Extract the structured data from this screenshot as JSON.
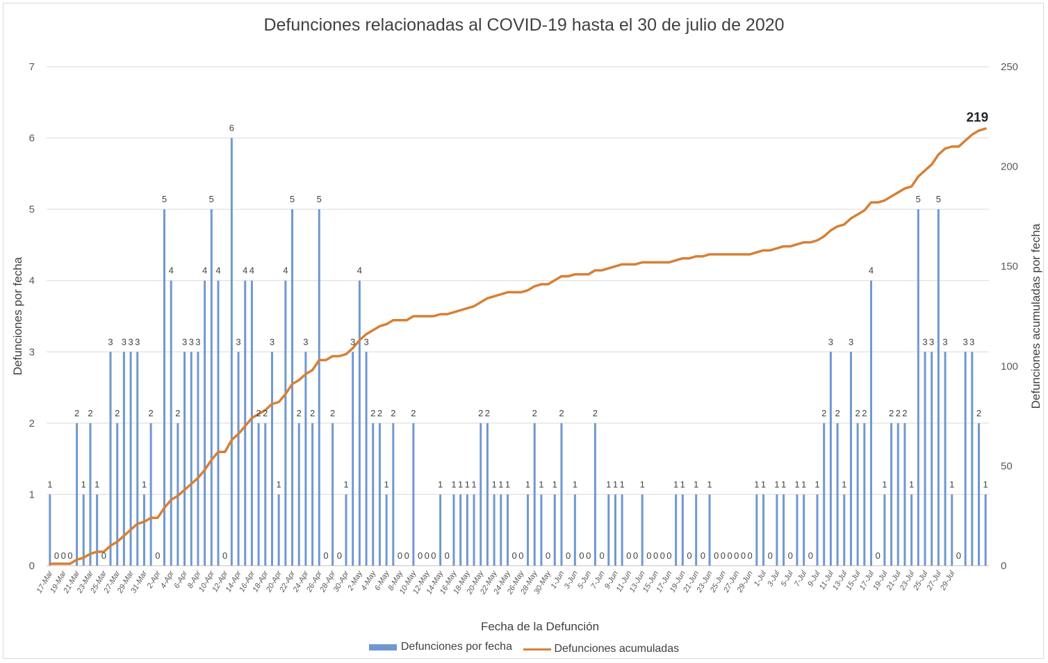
{
  "chart_data": {
    "type": "bar",
    "title": "Defunciones relacionadas al COVID-19 hasta el 30 de julio de 2020",
    "xlabel": "Fecha de la Defunción",
    "ylabel": "Defunciones por fecha",
    "y2label": "Defunciones acumuladas por fecha",
    "ylim": [
      0,
      7
    ],
    "y2lim": [
      0,
      250
    ],
    "yticks": [
      "0",
      "1",
      "2",
      "3",
      "4",
      "5",
      "6",
      "7"
    ],
    "y2ticks": [
      "0",
      "50",
      "100",
      "150",
      "200",
      "250"
    ],
    "grid": true,
    "legend_position": "bottom",
    "colors": {
      "bars": "#6f98d2",
      "line": "#d87f33",
      "grid": "#d9d9d9"
    },
    "tick_labels": [
      "17-Mar",
      "19-Mar",
      "21-Mar",
      "23-Mar",
      "25-Mar",
      "27-Mar",
      "29-Mar",
      "31-Mar",
      "2-Apr",
      "4-Apr",
      "6-Apr",
      "8-Apr",
      "10-Apr",
      "12-Apr",
      "14-Apr",
      "16-Apr",
      "18-Apr",
      "20-Apr",
      "22-Apr",
      "24-Apr",
      "26-Apr",
      "28-Apr",
      "30-Apr",
      "2-May",
      "4-May",
      "6-May",
      "8-May",
      "10-May",
      "12-May",
      "14-May",
      "16-May",
      "18-May",
      "20-May",
      "22-May",
      "24-May",
      "26-May",
      "28-May",
      "30-May",
      "1-Jun",
      "3-Jun",
      "5-Jun",
      "7-Jun",
      "9-Jun",
      "11-Jun",
      "13-Jun",
      "15-Jun",
      "17-Jun",
      "19-Jun",
      "21-Jun",
      "23-Jun",
      "25-Jun",
      "27-Jun",
      "29-Jun",
      "1-Jul",
      "3-Jul",
      "5-Jul",
      "7-Jul",
      "9-Jul",
      "11-Jul",
      "13-Jul",
      "15-Jul",
      "17-Jul",
      "19-Jul",
      "21-Jul",
      "23-Jul",
      "25-Jul",
      "27-Jul",
      "29-Jul"
    ],
    "series": [
      {
        "name": "Defunciones por fecha",
        "type": "bar",
        "values": [
          1,
          0,
          0,
          0,
          2,
          1,
          2,
          1,
          0,
          3,
          2,
          3,
          3,
          3,
          1,
          2,
          0,
          5,
          4,
          2,
          3,
          3,
          3,
          4,
          5,
          4,
          0,
          6,
          3,
          4,
          4,
          2,
          2,
          3,
          1,
          4,
          5,
          2,
          3,
          2,
          5,
          0,
          2,
          0,
          1,
          3,
          4,
          3,
          2,
          2,
          1,
          2,
          0,
          0,
          2,
          0,
          0,
          0,
          1,
          0,
          1,
          1,
          1,
          1,
          2,
          2,
          1,
          1,
          1,
          0,
          0,
          1,
          2,
          1,
          0,
          1,
          2,
          0,
          1,
          0,
          0,
          2,
          0,
          1,
          1,
          1,
          0,
          0,
          1,
          0,
          0,
          0,
          0,
          1,
          1,
          0,
          1,
          0,
          1,
          0,
          0,
          0,
          0,
          0,
          0,
          1,
          1,
          0,
          1,
          1,
          0,
          1,
          1,
          0,
          1,
          2,
          3,
          2,
          1,
          3,
          2,
          2,
          4,
          0,
          1,
          2,
          2,
          2,
          1,
          5,
          3,
          3,
          5,
          3,
          1,
          0,
          3,
          3,
          2,
          1
        ]
      },
      {
        "name": "Defunciones acumuladas",
        "type": "line",
        "values": [
          1,
          1,
          1,
          1,
          3,
          4,
          6,
          7,
          7,
          10,
          12,
          15,
          18,
          21,
          22,
          24,
          24,
          29,
          33,
          35,
          38,
          41,
          44,
          48,
          53,
          57,
          57,
          63,
          66,
          70,
          74,
          76,
          78,
          81,
          82,
          86,
          91,
          93,
          96,
          98,
          103,
          103,
          105,
          105,
          106,
          109,
          113,
          116,
          118,
          120,
          121,
          123,
          123,
          123,
          125,
          125,
          125,
          125,
          126,
          126,
          127,
          128,
          129,
          130,
          132,
          134,
          135,
          136,
          137,
          137,
          137,
          138,
          140,
          141,
          141,
          143,
          145,
          145,
          146,
          146,
          146,
          148,
          148,
          149,
          150,
          151,
          151,
          151,
          152,
          152,
          152,
          152,
          152,
          153,
          154,
          154,
          155,
          155,
          156,
          156,
          156,
          156,
          156,
          156,
          156,
          157,
          158,
          158,
          159,
          160,
          160,
          161,
          162,
          162,
          163,
          165,
          168,
          170,
          171,
          174,
          176,
          178,
          182,
          182,
          183,
          185,
          187,
          189,
          190,
          195,
          198,
          201,
          206,
          209,
          210,
          210,
          213,
          216,
          218,
          219
        ]
      }
    ],
    "final_label": "219"
  }
}
